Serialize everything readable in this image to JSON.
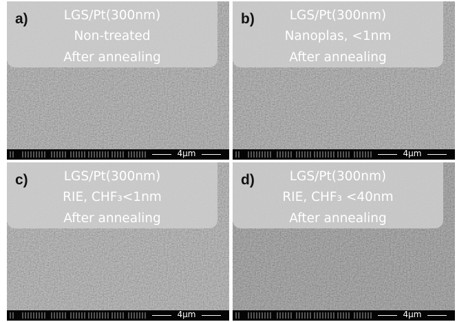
{
  "panels": [
    {
      "letter": "a)",
      "lines": [
        "LGS/Pt(300nm)",
        "Non-treated",
        "After annealing"
      ],
      "scale_bar": "4µm"
    },
    {
      "letter": "b)",
      "lines": [
        "LGS/Pt(300nm)",
        "Nanoplas, <1nm",
        "After annealing"
      ],
      "scale_bar": "4µm"
    },
    {
      "letter": "c)",
      "lines": [
        "LGS/Pt(300nm)",
        "RIE, CHF₃<1nm",
        "After annealing"
      ],
      "scale_bar": "4µm"
    },
    {
      "letter": "d)",
      "lines": [
        "LGS/Pt(300nm)",
        "RIE, CHF₃ <40nm",
        "After annealing"
      ],
      "scale_bar": "4µm"
    }
  ]
}
